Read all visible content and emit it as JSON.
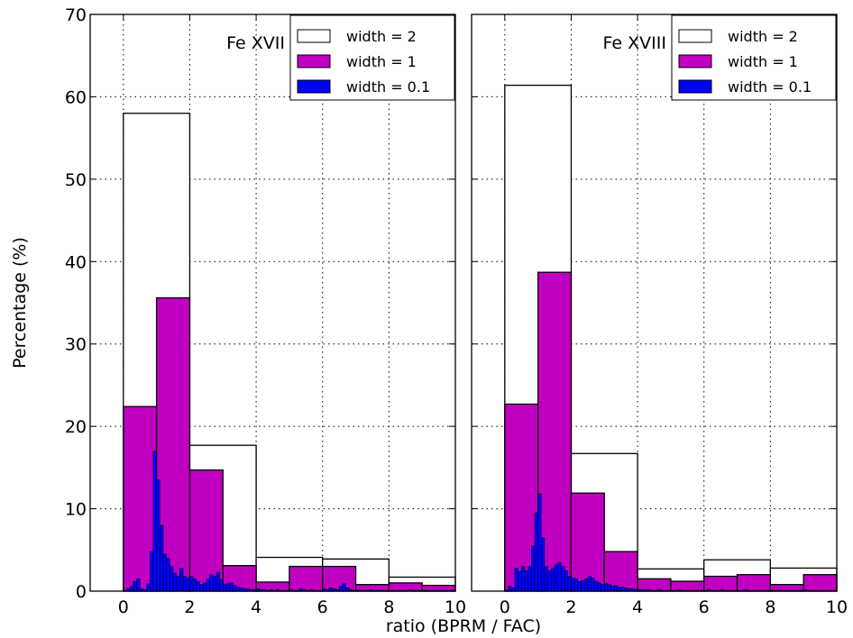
{
  "chart_data": {
    "type": "bar",
    "ylabel": "Percentage (%)",
    "xlabel": "ratio (BPRM / FAC)",
    "ylim": [
      0,
      70
    ],
    "yticks": [
      0,
      10,
      20,
      30,
      40,
      50,
      60,
      70
    ],
    "xlim": [
      -1,
      10
    ],
    "xticks": [
      0,
      2,
      4,
      6,
      8,
      10
    ],
    "grid": true,
    "legend_position": "top-right",
    "colors": {
      "width_2": "#ffffff",
      "width_1": "#c000c0",
      "width_0_1": "#0000ff"
    },
    "panels": [
      {
        "label": "Fe XVII",
        "legend": [
          "width = 2",
          "width = 1",
          "width = 0.1"
        ],
        "series": [
          {
            "name": "width = 2",
            "bin_width": 2,
            "bin_start": 0,
            "values": [
              58.0,
              17.7,
              4.1,
              3.9,
              1.7
            ]
          },
          {
            "name": "width = 1",
            "bin_width": 1,
            "bin_start": 0,
            "values": [
              22.4,
              35.6,
              14.7,
              3.1,
              1.1,
              3.0,
              3.0,
              0.8,
              1.0,
              0.7
            ]
          },
          {
            "name": "width = 0.1",
            "bin_width": 0.1,
            "bin_start": 0,
            "values": [
              0.1,
              0.3,
              0.6,
              1.2,
              1.5,
              0.3,
              0.2,
              0.9,
              4.8,
              17.0,
              13.5,
              8.0,
              4.5,
              4.0,
              3.0,
              2.2,
              1.8,
              2.8,
              1.8,
              1.6,
              1.8,
              1.5,
              1.2,
              0.8,
              1.0,
              1.5,
              2.0,
              1.8,
              2.3,
              1.4,
              0.8,
              0.9,
              1.0,
              0.7,
              0.5,
              0.4,
              0.3,
              0.3,
              0.2,
              0.2,
              0.3,
              0.2,
              0.2,
              0.1,
              0.2,
              0.1,
              0.2,
              0.1,
              0.1,
              0.1,
              0.2,
              0.1,
              0.1,
              0.3,
              0.2,
              0.1,
              0.2,
              0.1,
              0.1,
              0.1,
              0.3,
              0.2,
              0.4,
              0.3,
              0.2,
              0.6,
              0.9,
              0.4,
              0.2,
              0.1,
              0.1,
              0.1,
              0.1,
              0.1,
              0.2,
              0.1,
              0.1,
              0.1,
              0.1,
              0.1,
              0.1,
              0.1,
              0.1,
              0.1,
              0.1,
              0.1,
              0.2,
              0.1,
              0.1,
              0.1,
              0.1,
              0.1,
              0.1,
              0.1,
              0.1,
              0.1,
              0.1,
              0.1,
              0.1,
              0.1
            ]
          }
        ]
      },
      {
        "label": "Fe XVIII",
        "legend": [
          "width = 2",
          "width = 1",
          "width = 0.1"
        ],
        "series": [
          {
            "name": "width = 2",
            "bin_width": 2,
            "bin_start": 0,
            "values": [
              61.4,
              16.7,
              2.7,
              3.8,
              2.8
            ]
          },
          {
            "name": "width = 1",
            "bin_width": 1,
            "bin_start": 0,
            "values": [
              22.7,
              38.7,
              11.9,
              4.8,
              1.5,
              1.2,
              1.8,
              2.0,
              0.8,
              2.0
            ]
          },
          {
            "name": "width = 0.1",
            "bin_width": 0.1,
            "bin_start": 0,
            "values": [
              0.1,
              0.6,
              0.4,
              2.8,
              2.4,
              3.0,
              2.5,
              3.0,
              5.5,
              9.5,
              11.8,
              6.5,
              3.0,
              2.5,
              2.8,
              3.2,
              3.5,
              3.0,
              2.5,
              1.8,
              1.6,
              1.5,
              1.2,
              1.3,
              1.5,
              1.8,
              1.6,
              1.2,
              1.0,
              0.8,
              0.9,
              0.8,
              0.6,
              0.7,
              0.5,
              0.5,
              0.4,
              0.3,
              0.3,
              0.2,
              0.2,
              0.2,
              0.2,
              0.2,
              0.1,
              0.1,
              0.2,
              0.1,
              0.1,
              0.1,
              0.1,
              0.1,
              0.2,
              0.1,
              0.1,
              0.1,
              0.1,
              0.1,
              0.1,
              0.1,
              0.1,
              0.2,
              0.1,
              0.1,
              0.1,
              0.2,
              0.1,
              0.1,
              0.1,
              0.1,
              0.1,
              0.1,
              0.2,
              0.1,
              0.1,
              0.1,
              0.1,
              0.1,
              0.1,
              0.1,
              0.1,
              0.1,
              0.1,
              0.1,
              0.1,
              0.1,
              0.1,
              0.1,
              0.1,
              0.1,
              0.2,
              0.1,
              0.1,
              0.1,
              0.1,
              0.1,
              0.1,
              0.1,
              0.1,
              0.1
            ]
          }
        ]
      }
    ]
  }
}
